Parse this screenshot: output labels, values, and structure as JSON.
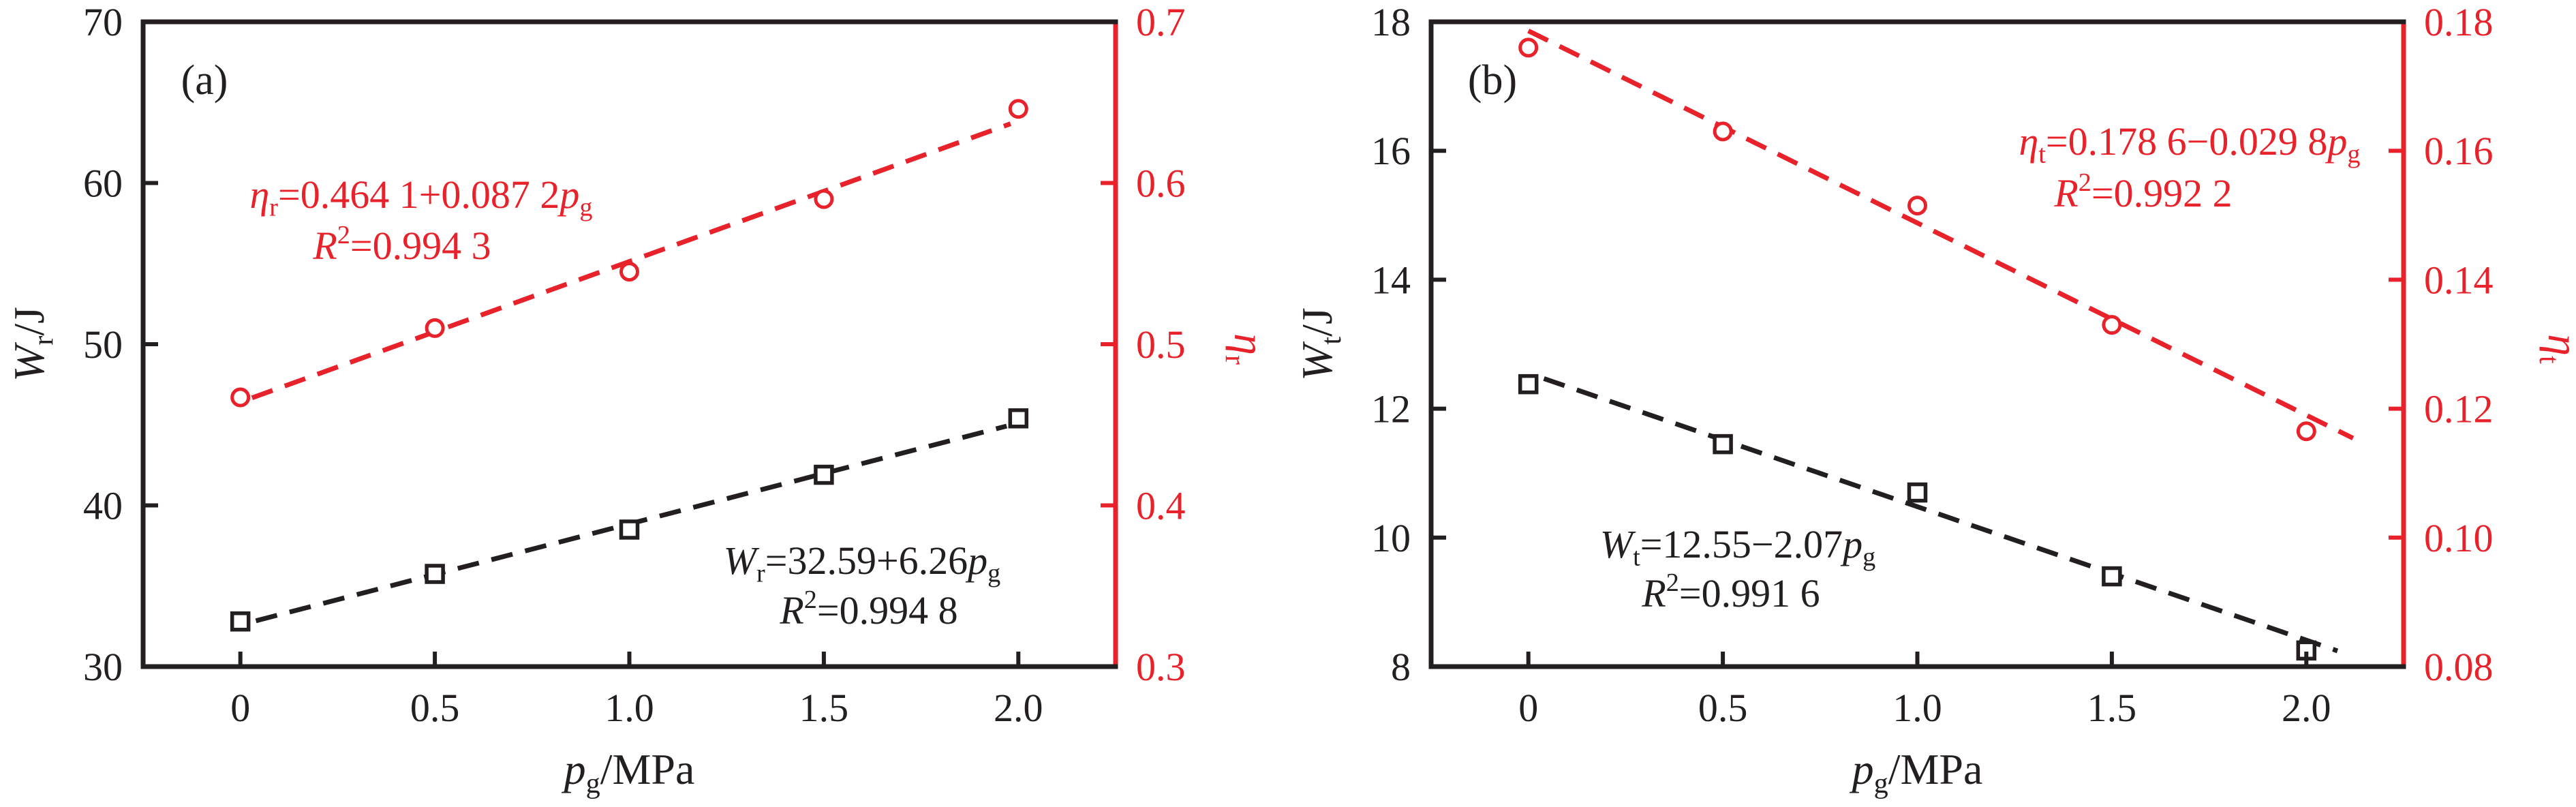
{
  "figure": {
    "background": "#ffffff",
    "black": "#231f20",
    "red": "#e8222a"
  },
  "chart_data": {
    "type": "line",
    "description": "Two-panel dual-axis scatter plots with linear dashed fit lines",
    "panels": [
      {
        "label": "(a)",
        "x_axis": {
          "min": -0.25,
          "max": 2.25,
          "ticks": [
            {
              "v": 0,
              "label": "0"
            },
            {
              "v": 0.5,
              "label": "0.5"
            },
            {
              "v": 1.0,
              "label": "1.0"
            },
            {
              "v": 1.5,
              "label": "1.5"
            },
            {
              "v": 2.0,
              "label": "2.0"
            }
          ],
          "title_segments": [
            {
              "t": "p",
              "s": "i"
            },
            {
              "t": "g",
              "s": "sub"
            },
            {
              "t": "/MPa"
            }
          ]
        },
        "left_axis": {
          "min": 30,
          "max": 70,
          "color": "#231f20",
          "ticks": [
            {
              "v": 30,
              "label": "30"
            },
            {
              "v": 40,
              "label": "40"
            },
            {
              "v": 50,
              "label": "50"
            },
            {
              "v": 60,
              "label": "60"
            },
            {
              "v": 70,
              "label": "70"
            }
          ],
          "title_segments": [
            {
              "t": "W",
              "s": "i"
            },
            {
              "t": "r",
              "s": "sub"
            },
            {
              "t": "/J"
            }
          ]
        },
        "right_axis": {
          "min": 0.3,
          "max": 0.7,
          "color": "#e8222a",
          "ticks": [
            {
              "v": 0.3,
              "label": "0.3"
            },
            {
              "v": 0.4,
              "label": "0.4"
            },
            {
              "v": 0.5,
              "label": "0.5"
            },
            {
              "v": 0.6,
              "label": "0.6"
            },
            {
              "v": 0.7,
              "label": "0.7"
            }
          ],
          "title_segments": [
            {
              "t": "η",
              "s": "i"
            },
            {
              "t": "r",
              "s": "sub"
            }
          ]
        },
        "series": [
          {
            "name": "Wr",
            "axis": "left",
            "marker": "square",
            "color": "#231f20",
            "x": [
              0,
              0.5,
              1.0,
              1.5,
              2.0
            ],
            "y": [
              32.8,
              35.75,
              38.5,
              41.9,
              45.4
            ],
            "fit": {
              "intercept": 32.59,
              "slope": 6.26,
              "p_start": 0.04,
              "p_end": 1.97
            }
          },
          {
            "name": "eta_r",
            "axis": "right",
            "marker": "circle",
            "color": "#e8222a",
            "x": [
              0,
              0.5,
              1.0,
              1.5,
              2.0
            ],
            "y": [
              0.467,
              0.51,
              0.545,
              0.59,
              0.646
            ],
            "fit": {
              "intercept": 0.4641,
              "slope": 0.0872,
              "p_start": 0.03,
              "p_end": 1.98
            }
          }
        ],
        "annotations": [
          {
            "name": "eta-r-equation",
            "color": "#e8222a",
            "lines": [
              [
                {
                  "t": "η",
                  "s": "i"
                },
                {
                  "t": "r",
                  "s": "sub"
                },
                {
                  "t": "=0.464 1+0.087 2"
                },
                {
                  "t": "p",
                  "s": "i"
                },
                {
                  "t": "g",
                  "s": "sub"
                }
              ],
              [
                {
                  "t": "R",
                  "s": "i"
                },
                {
                  "t": "2",
                  "s": "sup"
                },
                {
                  "t": "=0.994 3"
                }
              ]
            ]
          },
          {
            "name": "wr-equation",
            "color": "#231f20",
            "lines": [
              [
                {
                  "t": "W",
                  "s": "i"
                },
                {
                  "t": "r",
                  "s": "sub"
                },
                {
                  "t": "=32.59+6.26"
                },
                {
                  "t": "p",
                  "s": "i"
                },
                {
                  "t": "g",
                  "s": "sub"
                }
              ],
              [
                {
                  "t": "R",
                  "s": "i"
                },
                {
                  "t": "2",
                  "s": "sup"
                },
                {
                  "t": "=0.994 8"
                }
              ]
            ]
          }
        ]
      },
      {
        "label": "(b)",
        "x_axis": {
          "min": -0.25,
          "max": 2.25,
          "ticks": [
            {
              "v": 0,
              "label": "0"
            },
            {
              "v": 0.5,
              "label": "0.5"
            },
            {
              "v": 1.0,
              "label": "1.0"
            },
            {
              "v": 1.5,
              "label": "1.5"
            },
            {
              "v": 2.0,
              "label": "2.0"
            }
          ],
          "title_segments": [
            {
              "t": "p",
              "s": "i"
            },
            {
              "t": "g",
              "s": "sub"
            },
            {
              "t": "/MPa"
            }
          ]
        },
        "left_axis": {
          "min": 8,
          "max": 18,
          "color": "#231f20",
          "ticks": [
            {
              "v": 8,
              "label": "8"
            },
            {
              "v": 10,
              "label": "10"
            },
            {
              "v": 12,
              "label": "12"
            },
            {
              "v": 14,
              "label": "14"
            },
            {
              "v": 16,
              "label": "16"
            },
            {
              "v": 18,
              "label": "18"
            }
          ],
          "title_segments": [
            {
              "t": "W",
              "s": "i"
            },
            {
              "t": "t",
              "s": "sub"
            },
            {
              "t": "/J"
            }
          ]
        },
        "right_axis": {
          "min": 0.08,
          "max": 0.18,
          "color": "#e8222a",
          "ticks": [
            {
              "v": 0.08,
              "label": "0.08"
            },
            {
              "v": 0.1,
              "label": "0.10"
            },
            {
              "v": 0.12,
              "label": "0.12"
            },
            {
              "v": 0.14,
              "label": "0.14"
            },
            {
              "v": 0.16,
              "label": "0.16"
            },
            {
              "v": 0.18,
              "label": "0.18"
            }
          ],
          "title_segments": [
            {
              "t": "η",
              "s": "i"
            },
            {
              "t": "t",
              "s": "sub"
            }
          ]
        },
        "series": [
          {
            "name": "Wt",
            "axis": "left",
            "marker": "square",
            "color": "#231f20",
            "x": [
              0,
              0.5,
              1.0,
              1.5,
              2.0
            ],
            "y": [
              12.38,
              11.45,
              10.7,
              9.4,
              8.25
            ],
            "fit": {
              "intercept": 12.55,
              "slope": -2.07,
              "p_start": 0.04,
              "p_end": 2.08
            }
          },
          {
            "name": "eta_t",
            "axis": "right",
            "marker": "circle",
            "color": "#e8222a",
            "x": [
              0,
              0.5,
              1.0,
              1.5,
              2.0
            ],
            "y": [
              0.176,
              0.163,
              0.1515,
              0.133,
              0.1165
            ],
            "fit": {
              "intercept": 0.1786,
              "slope": -0.0298,
              "p_start": 0.0,
              "p_end": 2.12
            }
          }
        ],
        "annotations": [
          {
            "name": "eta-t-equation",
            "color": "#e8222a",
            "lines": [
              [
                {
                  "t": "η",
                  "s": "i"
                },
                {
                  "t": "t",
                  "s": "sub"
                },
                {
                  "t": "=0.178 6−0.029 8"
                },
                {
                  "t": "p",
                  "s": "i"
                },
                {
                  "t": "g",
                  "s": "sub"
                }
              ],
              [
                {
                  "t": "R",
                  "s": "i"
                },
                {
                  "t": "2",
                  "s": "sup"
                },
                {
                  "t": "=0.992 2"
                }
              ]
            ]
          },
          {
            "name": "wt-equation",
            "color": "#231f20",
            "lines": [
              [
                {
                  "t": "W",
                  "s": "i"
                },
                {
                  "t": "t",
                  "s": "sub"
                },
                {
                  "t": "=12.55−2.07"
                },
                {
                  "t": "p",
                  "s": "i"
                },
                {
                  "t": "g",
                  "s": "sub"
                }
              ],
              [
                {
                  "t": "R",
                  "s": "i"
                },
                {
                  "t": "2",
                  "s": "sup"
                },
                {
                  "t": "=0.991 6"
                }
              ]
            ]
          }
        ]
      }
    ]
  }
}
